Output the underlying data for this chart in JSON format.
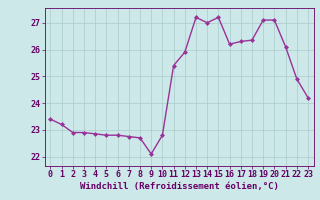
{
  "x": [
    0,
    1,
    2,
    3,
    4,
    5,
    6,
    7,
    8,
    9,
    10,
    11,
    12,
    13,
    14,
    15,
    16,
    17,
    18,
    19,
    20,
    21,
    22,
    23
  ],
  "y": [
    23.4,
    23.2,
    22.9,
    22.9,
    22.85,
    22.8,
    22.8,
    22.75,
    22.7,
    22.1,
    22.8,
    25.4,
    25.9,
    27.2,
    27.0,
    27.2,
    26.2,
    26.3,
    26.35,
    27.1,
    27.1,
    26.1,
    24.9,
    24.2
  ],
  "line_color": "#993399",
  "marker": "D",
  "marker_size": 2.0,
  "linewidth": 1.0,
  "xlabel": "Windchill (Refroidissement éolien,°C)",
  "xlim": [
    -0.5,
    23.5
  ],
  "ylim": [
    21.65,
    27.55
  ],
  "yticks": [
    22,
    23,
    24,
    25,
    26,
    27
  ],
  "xticks": [
    0,
    1,
    2,
    3,
    4,
    5,
    6,
    7,
    8,
    9,
    10,
    11,
    12,
    13,
    14,
    15,
    16,
    17,
    18,
    19,
    20,
    21,
    22,
    23
  ],
  "bg_color": "#cce8e8",
  "grid_color": "#aacccc",
  "tick_label_color": "#660066",
  "xlabel_color": "#660066",
  "xlabel_fontsize": 6.5,
  "tick_fontsize": 6.0,
  "fig_bg": "#cce8e8"
}
